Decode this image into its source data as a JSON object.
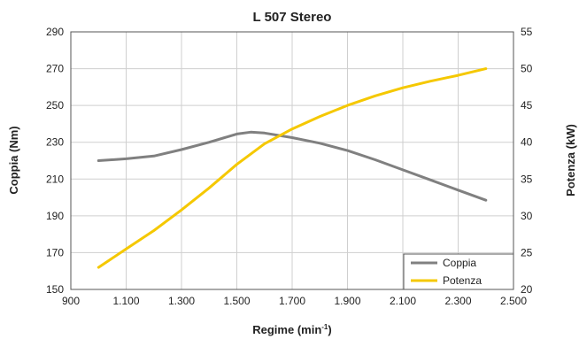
{
  "chart_data": {
    "type": "line",
    "title": "L 507 Stereo",
    "xlabel": "Regime (min",
    "xlabel_sup": "-1",
    "xlabel_close": ")",
    "ylabel_left": "Coppia (Nm)",
    "ylabel_right": "Potenza (kW)",
    "xlim": [
      900,
      2500
    ],
    "ylim_left": [
      150,
      290
    ],
    "ylim_right": [
      20,
      55
    ],
    "x_ticks": [
      900,
      1100,
      1300,
      1500,
      1700,
      1900,
      2100,
      2300,
      2500
    ],
    "x_tick_labels": [
      "900",
      "1.100",
      "1.300",
      "1.500",
      "1.700",
      "1.900",
      "2.100",
      "2.300",
      "2.500"
    ],
    "y_left_ticks": [
      150,
      170,
      190,
      210,
      230,
      250,
      270,
      290
    ],
    "y_left_tick_labels": [
      "150",
      "170",
      "190",
      "210",
      "230",
      "250",
      "270",
      "290"
    ],
    "y_right_ticks": [
      20,
      25,
      30,
      35,
      40,
      45,
      50,
      55
    ],
    "y_right_tick_labels": [
      "20",
      "25",
      "30",
      "35",
      "40",
      "45",
      "50",
      "55"
    ],
    "grid": true,
    "legend_position": "bottom-right",
    "series": [
      {
        "name": "Coppia",
        "axis": "left",
        "color": "#808080",
        "x": [
          1000,
          1100,
          1200,
          1300,
          1400,
          1500,
          1550,
          1600,
          1700,
          1800,
          1900,
          2000,
          2100,
          2200,
          2300,
          2400
        ],
        "y": [
          220,
          221,
          222.5,
          226,
          230,
          234.5,
          235.5,
          235,
          232.5,
          229.5,
          225.5,
          220.5,
          215,
          209.5,
          204,
          198.5
        ]
      },
      {
        "name": "Potenza",
        "axis": "right",
        "color": "#f5c800",
        "x": [
          1000,
          1100,
          1200,
          1300,
          1400,
          1500,
          1600,
          1700,
          1800,
          1900,
          2000,
          2100,
          2200,
          2300,
          2400
        ],
        "y": [
          23,
          25.5,
          28,
          30.8,
          33.8,
          37,
          39.8,
          41.8,
          43.5,
          45,
          46.3,
          47.4,
          48.3,
          49.1,
          50
        ]
      }
    ]
  }
}
